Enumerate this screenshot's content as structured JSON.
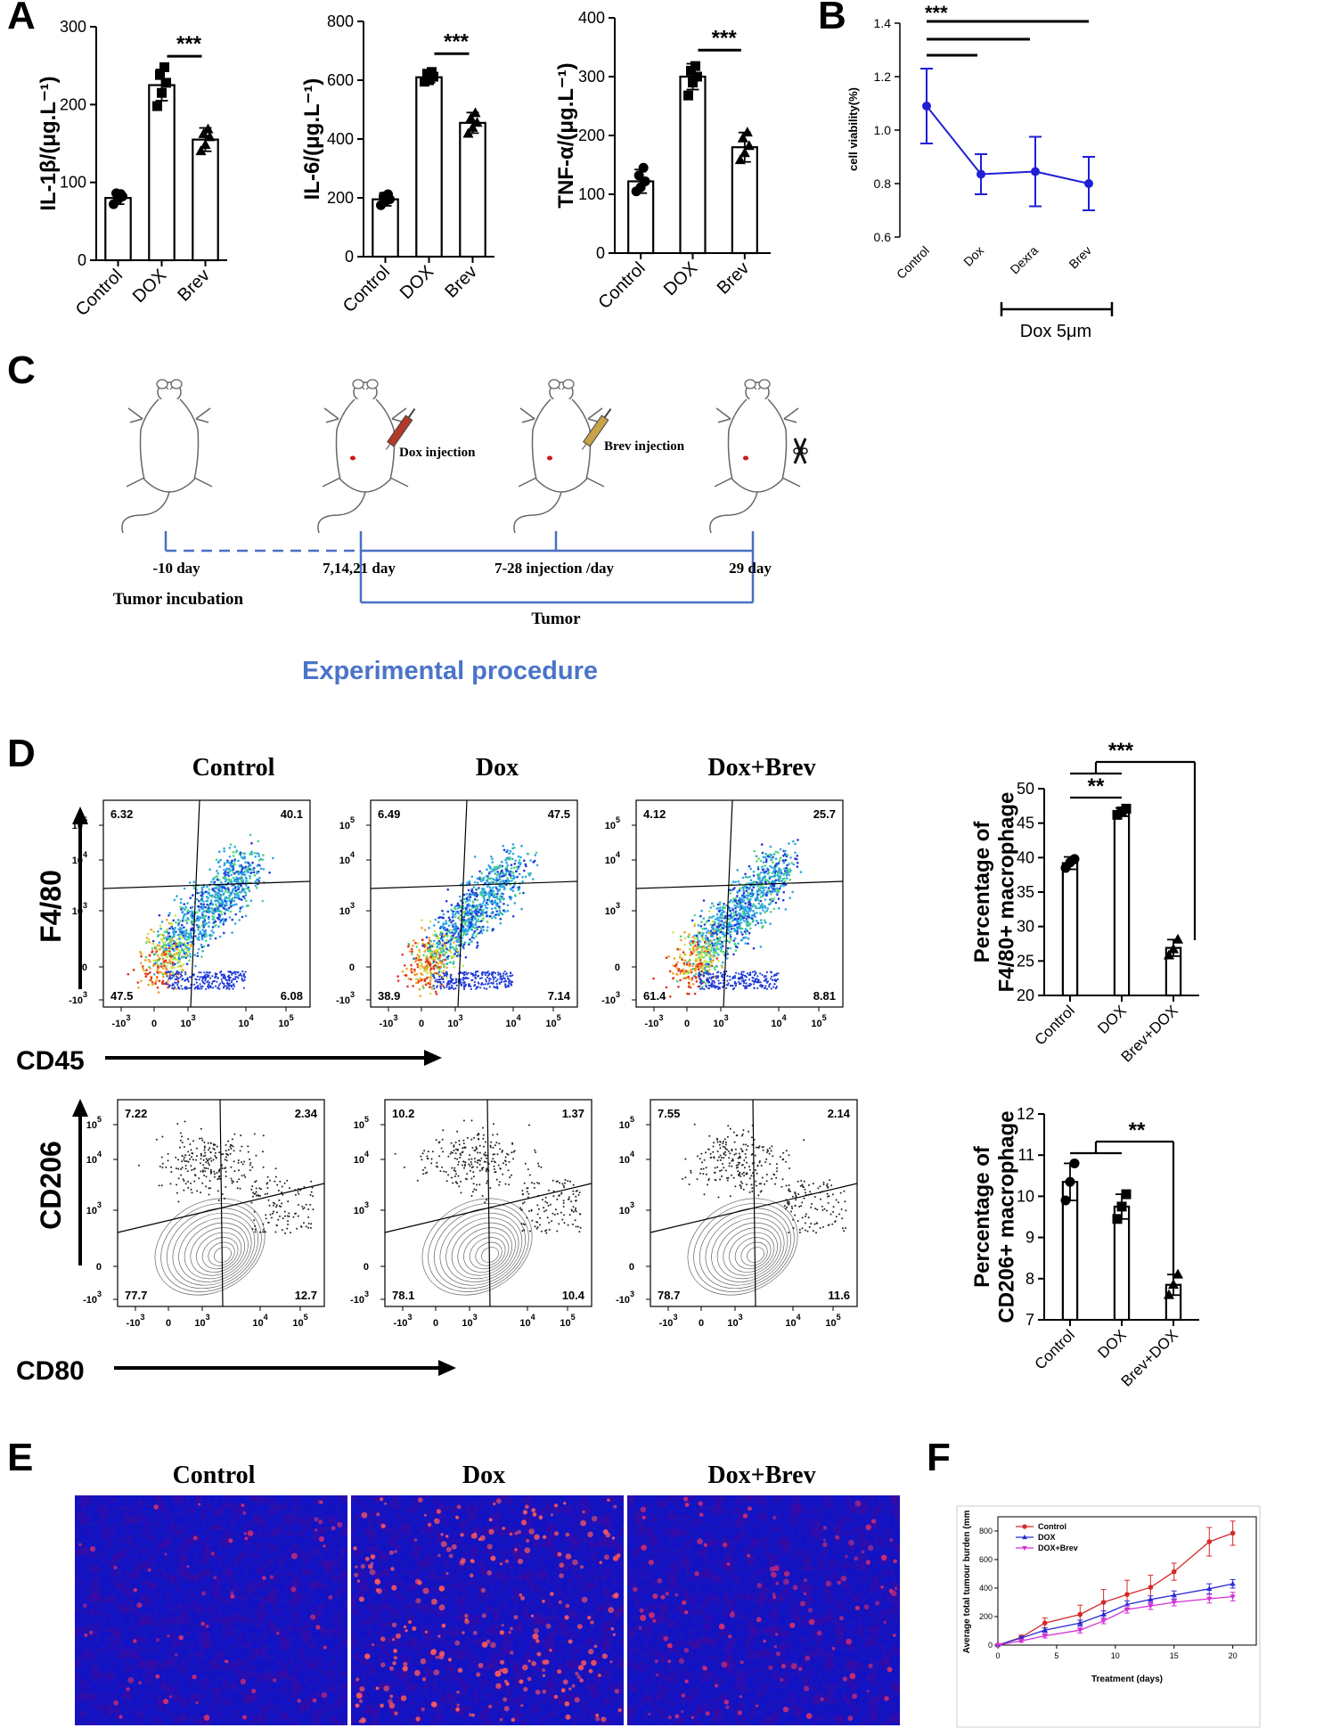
{
  "panels": {
    "A": "A",
    "B": "B",
    "C": "C",
    "D": "D",
    "E": "E",
    "F": "F"
  },
  "colors": {
    "blue": "#1f1fd6",
    "red": "#d42a2a",
    "magenta": "#d62fd6",
    "procedure": "#4a74c9",
    "timeline": "#4a6fc4"
  },
  "chart_data": [
    {
      "id": "A1",
      "type": "bar",
      "ylabel": "IL-1β/(μg.L⁻¹)",
      "ylim": [
        0,
        300
      ],
      "yticks": [
        0,
        100,
        200,
        300
      ],
      "categories": [
        "Control",
        "DOX",
        "Brev"
      ],
      "values": [
        80,
        225,
        155
      ],
      "errors": [
        8,
        20,
        15
      ],
      "points": [
        [
          72,
          78,
          82,
          86,
          85
        ],
        [
          198,
          215,
          228,
          238,
          248
        ],
        [
          140,
          148,
          158,
          162,
          168
        ]
      ],
      "markers": [
        "circle",
        "square",
        "triangle"
      ],
      "sig": "***"
    },
    {
      "id": "A2",
      "type": "bar",
      "ylabel": "IL-6/(μg.L⁻¹)",
      "ylim": [
        0,
        800
      ],
      "yticks": [
        0,
        200,
        400,
        600,
        800
      ],
      "categories": [
        "Control",
        "DOX",
        "Brev"
      ],
      "values": [
        195,
        610,
        455
      ],
      "errors": [
        22,
        18,
        35
      ],
      "points": [
        [
          175,
          188,
          195,
          205,
          212
        ],
        [
          595,
          600,
          612,
          622,
          628
        ],
        [
          418,
          438,
          455,
          470,
          488
        ]
      ],
      "markers": [
        "circle",
        "square",
        "triangle"
      ],
      "sig": "***"
    },
    {
      "id": "A3",
      "type": "bar",
      "ylabel": "TNF-α/(μg.L⁻¹)",
      "ylim": [
        0,
        400
      ],
      "yticks": [
        0,
        100,
        200,
        300,
        400
      ],
      "categories": [
        "Control",
        "DOX",
        "Brev"
      ],
      "values": [
        122,
        300,
        180
      ],
      "errors": [
        20,
        22,
        25
      ],
      "points": [
        [
          105,
          112,
          122,
          132,
          145
        ],
        [
          268,
          290,
          300,
          310,
          318
        ],
        [
          158,
          170,
          182,
          195,
          205
        ]
      ],
      "markers": [
        "circle",
        "square",
        "triangle"
      ],
      "sig": "***"
    },
    {
      "id": "B",
      "type": "line",
      "ylabel": "cell viability(%)",
      "ylim": [
        0.6,
        1.4
      ],
      "yticks": [
        "0.6",
        "0.8",
        "1.0",
        "1.2",
        "1.4"
      ],
      "categories": [
        "Control",
        "Dox",
        "Dexra",
        "Brev"
      ],
      "values": [
        1.09,
        0.835,
        0.845,
        0.8
      ],
      "errors": [
        0.14,
        0.075,
        0.13,
        0.1
      ],
      "sig": "***",
      "bracket_label": "Dox 5μm"
    },
    {
      "id": "D1",
      "type": "bar",
      "ylabel": "Percentage of F4/80+ macrophage",
      "ylim": [
        20,
        50
      ],
      "yticks": [
        20,
        25,
        30,
        35,
        40,
        45,
        50
      ],
      "categories": [
        "Control",
        "DOX",
        "Brev+DOX"
      ],
      "values": [
        39.2,
        46.6,
        26.9
      ],
      "errors": [
        0.9,
        0.6,
        1.2
      ],
      "points": [
        [
          38.5,
          39.3,
          39.8
        ],
        [
          46.2,
          46.7,
          47.1
        ],
        [
          25.8,
          26.7,
          28.1
        ]
      ],
      "markers": [
        "circle",
        "square",
        "triangle"
      ],
      "sig_inner": "**",
      "sig_outer": "***"
    },
    {
      "id": "D2",
      "type": "bar",
      "ylabel": "Percentage of CD206+ macrophage",
      "ylim": [
        7,
        12
      ],
      "yticks": [
        7,
        8,
        9,
        10,
        11,
        12
      ],
      "categories": [
        "Control",
        "DOX",
        "Brev+DOX"
      ],
      "values": [
        10.35,
        9.75,
        7.85
      ],
      "errors": [
        0.45,
        0.3,
        0.25
      ],
      "points": [
        [
          9.9,
          10.35,
          10.8
        ],
        [
          9.45,
          9.75,
          10.05
        ],
        [
          7.6,
          7.85,
          8.1
        ]
      ],
      "markers": [
        "circle",
        "square",
        "triangle"
      ],
      "sig": "**"
    },
    {
      "id": "F",
      "type": "line",
      "xlabel": "Treatment (days)",
      "ylabel": "Average total tumour burden (mm",
      "xlim": [
        0,
        22
      ],
      "xticks": [
        0,
        5,
        10,
        15,
        20
      ],
      "ylim": [
        0,
        900
      ],
      "yticks": [
        0,
        200,
        400,
        600,
        800
      ],
      "x": [
        0,
        2,
        4,
        7,
        9,
        11,
        13,
        15,
        18,
        20
      ],
      "series": [
        {
          "name": "Control",
          "color": "#d42a2a",
          "marker": "circle",
          "values": [
            0,
            55,
            155,
            215,
            300,
            355,
            405,
            515,
            725,
            785
          ],
          "errors": [
            0,
            15,
            35,
            65,
            90,
            100,
            85,
            60,
            100,
            85
          ]
        },
        {
          "name": "DOX",
          "color": "#2a2ad4",
          "marker": "triangle",
          "values": [
            0,
            50,
            105,
            155,
            215,
            285,
            320,
            350,
            395,
            430
          ],
          "errors": [
            0,
            10,
            15,
            20,
            25,
            25,
            25,
            30,
            35,
            30
          ]
        },
        {
          "name": "DOX+Brev",
          "color": "#d62fd6",
          "marker": "triangle-down",
          "values": [
            0,
            30,
            65,
            105,
            170,
            250,
            275,
            300,
            325,
            340
          ],
          "errors": [
            0,
            10,
            15,
            20,
            20,
            25,
            25,
            25,
            30,
            30
          ]
        }
      ]
    }
  ],
  "flow": {
    "groups": [
      "Control",
      "Dox",
      "Dox+Brev"
    ],
    "top": {
      "ylabel": "F4/80",
      "xlabel": "CD45",
      "quadrants": [
        [
          "6.32",
          "40.1",
          "47.5",
          "6.08"
        ],
        [
          "6.49",
          "47.5",
          "38.9",
          "7.14"
        ],
        [
          "4.12",
          "25.7",
          "61.4",
          "8.81"
        ]
      ]
    },
    "bottom": {
      "ylabel": "CD206",
      "xlabel": "CD80",
      "quadrants": [
        [
          "7.22",
          "2.34",
          "77.7",
          "12.7"
        ],
        [
          "10.2",
          "1.37",
          "78.1",
          "10.4"
        ],
        [
          "7.55",
          "2.14",
          "78.7",
          "11.6"
        ]
      ]
    },
    "ticks": [
      "-10",
      "0",
      "10",
      "10",
      "10"
    ],
    "tick_sups": [
      "3",
      "",
      "3",
      "4",
      "5"
    ]
  },
  "procedure": {
    "title": "Experimental procedure",
    "dox_injection": "Dox injection",
    "brev_injection": "Brev injection",
    "labels": [
      "-10 day",
      "7,14,21 day",
      "7-28 injection /day",
      "29 day"
    ],
    "tumor_incubation": "Tumor incubation",
    "tumor": "Tumor"
  },
  "micro_titles": [
    "Control",
    "Dox",
    "Dox+Brev"
  ]
}
